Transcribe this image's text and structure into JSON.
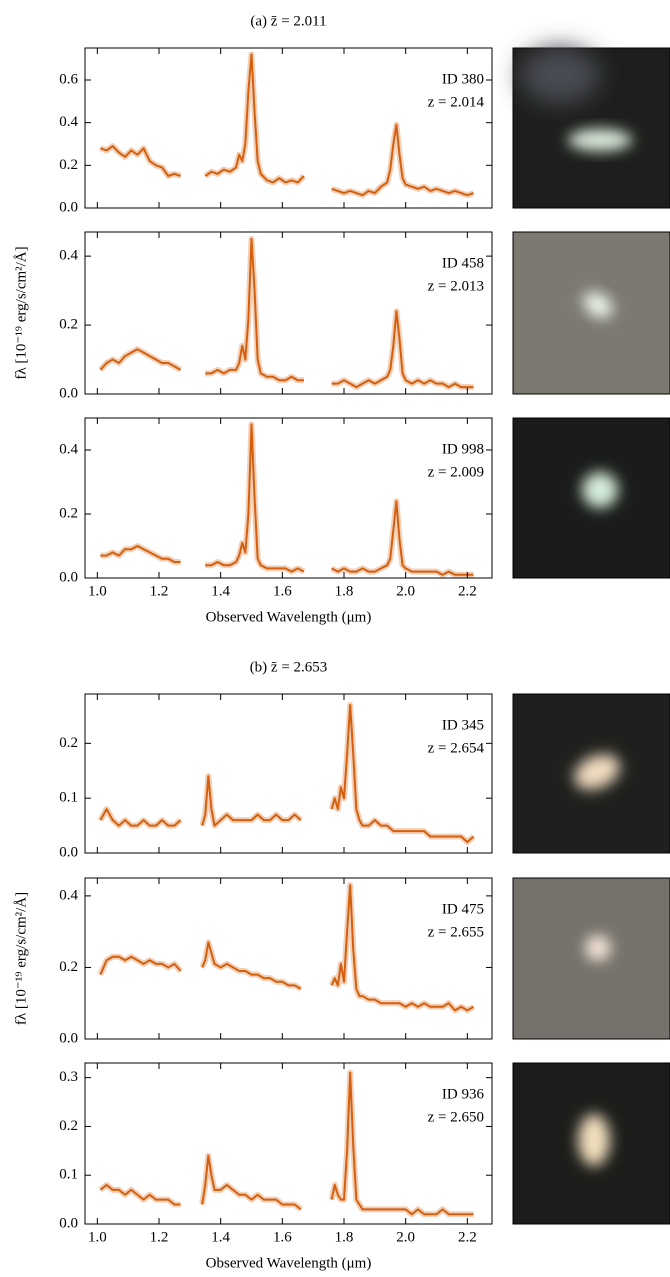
{
  "chart_data": [
    {
      "type": "line",
      "title": "(a) z̄ = 2.011",
      "annotations": [
        "ID 380",
        "z = 2.014"
      ],
      "color": "#d3600f",
      "x": [
        1.01,
        1.03,
        1.05,
        1.07,
        1.09,
        1.11,
        1.13,
        1.15,
        1.17,
        1.19,
        1.21,
        1.23,
        1.25,
        1.27,
        1.31,
        1.35,
        1.37,
        1.39,
        1.41,
        1.43,
        1.45,
        1.46,
        1.47,
        1.48,
        1.49,
        1.5,
        1.51,
        1.52,
        1.53,
        1.55,
        1.57,
        1.59,
        1.61,
        1.63,
        1.65,
        1.67,
        1.72,
        1.76,
        1.78,
        1.8,
        1.82,
        1.84,
        1.86,
        1.88,
        1.9,
        1.92,
        1.94,
        1.95,
        1.96,
        1.97,
        1.98,
        1.99,
        2.0,
        2.02,
        2.04,
        2.06,
        2.08,
        2.1,
        2.12,
        2.14,
        2.16,
        2.18,
        2.2,
        2.22
      ],
      "values": [
        0.28,
        0.27,
        0.29,
        0.26,
        0.24,
        0.27,
        0.25,
        0.28,
        0.22,
        0.2,
        0.19,
        0.15,
        0.16,
        0.15,
        null,
        0.15,
        0.17,
        0.16,
        0.18,
        0.17,
        0.19,
        0.25,
        0.22,
        0.3,
        0.55,
        0.72,
        0.45,
        0.22,
        0.16,
        0.13,
        0.12,
        0.14,
        0.12,
        0.13,
        0.12,
        0.15,
        null,
        0.09,
        0.08,
        0.07,
        0.08,
        0.07,
        0.06,
        0.08,
        0.07,
        0.1,
        0.12,
        0.18,
        0.3,
        0.39,
        0.25,
        0.14,
        0.11,
        0.1,
        0.09,
        0.1,
        0.08,
        0.09,
        0.08,
        0.07,
        0.08,
        0.07,
        0.06,
        0.07
      ],
      "xlim": [
        0.96,
        2.28
      ],
      "xticks": [
        1,
        1.2,
        1.4,
        1.6,
        1.8,
        2,
        2.2
      ],
      "ylim": [
        0,
        0.75
      ],
      "yticks": [
        {
          "value": 0,
          "label": "0.0"
        },
        0.2,
        0.4,
        0.6
      ]
    },
    {
      "type": "line",
      "annotations": [
        "ID 458",
        "z = 2.013"
      ],
      "color": "#d3600f",
      "ylabel": "fλ [10⁻¹⁹ erg/s/cm²/Å]",
      "x": [
        1.01,
        1.03,
        1.05,
        1.07,
        1.09,
        1.11,
        1.13,
        1.15,
        1.17,
        1.19,
        1.21,
        1.23,
        1.25,
        1.27,
        1.31,
        1.35,
        1.37,
        1.39,
        1.41,
        1.43,
        1.45,
        1.46,
        1.47,
        1.48,
        1.49,
        1.5,
        1.51,
        1.52,
        1.53,
        1.55,
        1.57,
        1.59,
        1.61,
        1.63,
        1.65,
        1.67,
        1.72,
        1.76,
        1.78,
        1.8,
        1.82,
        1.84,
        1.86,
        1.88,
        1.9,
        1.92,
        1.94,
        1.95,
        1.96,
        1.97,
        1.98,
        1.99,
        2.0,
        2.02,
        2.04,
        2.06,
        2.08,
        2.1,
        2.12,
        2.14,
        2.16,
        2.18,
        2.2,
        2.22
      ],
      "values": [
        0.07,
        0.09,
        0.1,
        0.09,
        0.11,
        0.12,
        0.13,
        0.12,
        0.11,
        0.1,
        0.09,
        0.09,
        0.08,
        0.07,
        null,
        0.06,
        0.06,
        0.07,
        0.06,
        0.07,
        0.07,
        0.09,
        0.14,
        0.1,
        0.22,
        0.45,
        0.3,
        0.1,
        0.06,
        0.05,
        0.05,
        0.04,
        0.04,
        0.05,
        0.04,
        0.04,
        null,
        0.03,
        0.03,
        0.04,
        0.03,
        0.02,
        0.03,
        0.04,
        0.03,
        0.04,
        0.05,
        0.07,
        0.14,
        0.24,
        0.16,
        0.06,
        0.04,
        0.03,
        0.04,
        0.03,
        0.04,
        0.03,
        0.03,
        0.02,
        0.03,
        0.02,
        0.02,
        0.02
      ],
      "xlim": [
        0.96,
        2.28
      ],
      "xticks": [
        1,
        1.2,
        1.4,
        1.6,
        1.8,
        2,
        2.2
      ],
      "ylim": [
        0,
        0.47
      ],
      "yticks": [
        {
          "value": 0,
          "label": "0.0"
        },
        0.2,
        0.4
      ]
    },
    {
      "type": "line",
      "annotations": [
        "ID 998",
        "z = 2.009"
      ],
      "color": "#d3600f",
      "xlabel": "Observed Wavelength (μm)",
      "x": [
        1.01,
        1.03,
        1.05,
        1.07,
        1.09,
        1.11,
        1.13,
        1.15,
        1.17,
        1.19,
        1.21,
        1.23,
        1.25,
        1.27,
        1.31,
        1.35,
        1.37,
        1.39,
        1.41,
        1.43,
        1.45,
        1.46,
        1.47,
        1.48,
        1.49,
        1.5,
        1.51,
        1.52,
        1.53,
        1.55,
        1.57,
        1.59,
        1.61,
        1.63,
        1.65,
        1.67,
        1.72,
        1.76,
        1.78,
        1.8,
        1.82,
        1.84,
        1.86,
        1.88,
        1.9,
        1.92,
        1.94,
        1.95,
        1.96,
        1.97,
        1.98,
        1.99,
        2.0,
        2.02,
        2.04,
        2.06,
        2.08,
        2.1,
        2.12,
        2.14,
        2.16,
        2.18,
        2.2,
        2.22
      ],
      "values": [
        0.07,
        0.07,
        0.08,
        0.07,
        0.09,
        0.09,
        0.1,
        0.09,
        0.08,
        0.07,
        0.06,
        0.06,
        0.05,
        0.05,
        null,
        0.04,
        0.04,
        0.05,
        0.04,
        0.04,
        0.05,
        0.07,
        0.11,
        0.08,
        0.2,
        0.48,
        0.25,
        0.06,
        0.04,
        0.03,
        0.03,
        0.03,
        0.03,
        0.02,
        0.03,
        0.02,
        null,
        0.03,
        0.02,
        0.03,
        0.02,
        0.02,
        0.03,
        0.02,
        0.02,
        0.03,
        0.04,
        0.06,
        0.15,
        0.24,
        0.12,
        0.04,
        0.03,
        0.02,
        0.02,
        0.02,
        0.02,
        0.02,
        0.01,
        0.02,
        0.01,
        0.01,
        0.01,
        0.01
      ],
      "xlim": [
        0.96,
        2.28
      ],
      "xticks": [
        {
          "value": 1,
          "label": "1.0"
        },
        1.2,
        1.4,
        1.6,
        1.8,
        {
          "value": 2,
          "label": "2.0"
        },
        2.2
      ],
      "ylim": [
        0,
        0.5
      ],
      "yticks": [
        {
          "value": 0,
          "label": "0.0"
        },
        0.2,
        0.4
      ]
    },
    {
      "type": "line",
      "title": "(b) z̄ = 2.653",
      "annotations": [
        "ID 345",
        "z = 2.654"
      ],
      "color": "#d3600f",
      "x": [
        1.01,
        1.03,
        1.05,
        1.07,
        1.09,
        1.11,
        1.13,
        1.15,
        1.17,
        1.19,
        1.21,
        1.23,
        1.25,
        1.27,
        1.31,
        1.34,
        1.35,
        1.36,
        1.37,
        1.38,
        1.4,
        1.42,
        1.44,
        1.46,
        1.48,
        1.5,
        1.52,
        1.54,
        1.56,
        1.58,
        1.6,
        1.62,
        1.64,
        1.66,
        1.71,
        1.76,
        1.77,
        1.78,
        1.79,
        1.8,
        1.81,
        1.82,
        1.83,
        1.84,
        1.85,
        1.86,
        1.88,
        1.9,
        1.92,
        1.94,
        1.96,
        1.98,
        2.0,
        2.02,
        2.04,
        2.06,
        2.08,
        2.1,
        2.12,
        2.14,
        2.16,
        2.18,
        2.2,
        2.22
      ],
      "values": [
        0.06,
        0.08,
        0.06,
        0.05,
        0.06,
        0.05,
        0.05,
        0.06,
        0.05,
        0.05,
        0.06,
        0.05,
        0.05,
        0.06,
        null,
        0.05,
        0.07,
        0.14,
        0.08,
        0.05,
        0.06,
        0.07,
        0.06,
        0.06,
        0.06,
        0.06,
        0.07,
        0.06,
        0.06,
        0.07,
        0.06,
        0.06,
        0.07,
        0.06,
        null,
        0.08,
        0.1,
        0.08,
        0.12,
        0.1,
        0.18,
        0.27,
        0.18,
        0.08,
        0.06,
        0.05,
        0.05,
        0.06,
        0.05,
        0.05,
        0.04,
        0.04,
        0.04,
        0.04,
        0.04,
        0.04,
        0.03,
        0.03,
        0.03,
        0.03,
        0.03,
        0.03,
        0.02,
        0.03
      ],
      "xlim": [
        0.96,
        2.28
      ],
      "xticks": [
        1,
        1.2,
        1.4,
        1.6,
        1.8,
        2,
        2.2
      ],
      "ylim": [
        0,
        0.29
      ],
      "yticks": [
        {
          "value": 0,
          "label": "0.0"
        },
        0.1,
        0.2
      ]
    },
    {
      "type": "line",
      "annotations": [
        "ID 475",
        "z = 2.655"
      ],
      "color": "#d3600f",
      "ylabel": "fλ [10⁻¹⁹ erg/s/cm²/Å]",
      "x": [
        1.01,
        1.03,
        1.05,
        1.07,
        1.09,
        1.11,
        1.13,
        1.15,
        1.17,
        1.19,
        1.21,
        1.23,
        1.25,
        1.27,
        1.31,
        1.34,
        1.35,
        1.36,
        1.37,
        1.38,
        1.4,
        1.42,
        1.44,
        1.46,
        1.48,
        1.5,
        1.52,
        1.54,
        1.56,
        1.58,
        1.6,
        1.62,
        1.64,
        1.66,
        1.71,
        1.76,
        1.77,
        1.78,
        1.79,
        1.8,
        1.81,
        1.82,
        1.83,
        1.84,
        1.85,
        1.86,
        1.88,
        1.9,
        1.92,
        1.94,
        1.96,
        1.98,
        2.0,
        2.02,
        2.04,
        2.06,
        2.08,
        2.1,
        2.12,
        2.14,
        2.16,
        2.18,
        2.2,
        2.22
      ],
      "values": [
        0.18,
        0.22,
        0.23,
        0.23,
        0.22,
        0.23,
        0.22,
        0.21,
        0.22,
        0.21,
        0.21,
        0.2,
        0.21,
        0.19,
        null,
        0.2,
        0.22,
        0.27,
        0.24,
        0.21,
        0.2,
        0.21,
        0.2,
        0.19,
        0.19,
        0.18,
        0.18,
        0.17,
        0.17,
        0.16,
        0.16,
        0.15,
        0.15,
        0.14,
        null,
        0.15,
        0.17,
        0.15,
        0.21,
        0.16,
        0.3,
        0.43,
        0.25,
        0.14,
        0.12,
        0.12,
        0.11,
        0.11,
        0.1,
        0.1,
        0.1,
        0.1,
        0.09,
        0.1,
        0.09,
        0.1,
        0.09,
        0.09,
        0.09,
        0.1,
        0.08,
        0.09,
        0.08,
        0.09
      ],
      "xlim": [
        0.96,
        2.28
      ],
      "xticks": [
        1,
        1.2,
        1.4,
        1.6,
        1.8,
        2,
        2.2
      ],
      "ylim": [
        0,
        0.45
      ],
      "yticks": [
        {
          "value": 0,
          "label": "0.0"
        },
        0.2,
        0.4
      ]
    },
    {
      "type": "line",
      "annotations": [
        "ID 936",
        "z = 2.650"
      ],
      "color": "#d3600f",
      "xlabel": "Observed Wavelength (μm)",
      "x": [
        1.01,
        1.03,
        1.05,
        1.07,
        1.09,
        1.11,
        1.13,
        1.15,
        1.17,
        1.19,
        1.21,
        1.23,
        1.25,
        1.27,
        1.31,
        1.34,
        1.35,
        1.36,
        1.37,
        1.38,
        1.4,
        1.42,
        1.44,
        1.46,
        1.48,
        1.5,
        1.52,
        1.54,
        1.56,
        1.58,
        1.6,
        1.62,
        1.64,
        1.66,
        1.71,
        1.76,
        1.77,
        1.78,
        1.79,
        1.8,
        1.81,
        1.82,
        1.83,
        1.84,
        1.85,
        1.86,
        1.88,
        1.9,
        1.92,
        1.94,
        1.96,
        1.98,
        2.0,
        2.02,
        2.04,
        2.06,
        2.08,
        2.1,
        2.12,
        2.14,
        2.16,
        2.18,
        2.2,
        2.22
      ],
      "values": [
        0.07,
        0.08,
        0.07,
        0.07,
        0.06,
        0.07,
        0.06,
        0.05,
        0.06,
        0.05,
        0.05,
        0.05,
        0.04,
        0.04,
        null,
        0.04,
        0.08,
        0.14,
        0.1,
        0.07,
        0.07,
        0.08,
        0.07,
        0.06,
        0.06,
        0.05,
        0.06,
        0.05,
        0.05,
        0.05,
        0.04,
        0.04,
        0.04,
        0.03,
        null,
        0.05,
        0.08,
        0.06,
        0.05,
        0.05,
        0.15,
        0.31,
        0.16,
        0.05,
        0.04,
        0.03,
        0.03,
        0.03,
        0.03,
        0.03,
        0.03,
        0.03,
        0.03,
        0.02,
        0.03,
        0.02,
        0.02,
        0.02,
        0.03,
        0.02,
        0.02,
        0.02,
        0.02,
        0.02
      ],
      "xlim": [
        0.96,
        2.28
      ],
      "xticks": [
        {
          "value": 1,
          "label": "1.0"
        },
        1.2,
        1.4,
        1.6,
        1.8,
        {
          "value": 2,
          "label": "2.0"
        },
        2.2
      ],
      "ylim": [
        0,
        0.33
      ],
      "yticks": [
        {
          "value": 0,
          "label": "0.0"
        },
        0.1,
        0.2,
        0.3
      ]
    }
  ]
}
